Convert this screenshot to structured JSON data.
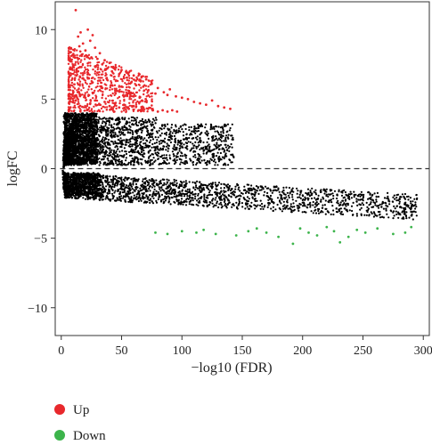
{
  "chart_data": {
    "type": "scatter",
    "title": "",
    "xlabel": "−log10 (FDR)",
    "ylabel": "logFC",
    "xlim": [
      -5,
      305
    ],
    "ylim": [
      -12,
      12
    ],
    "x_ticks": [
      0,
      50,
      100,
      150,
      200,
      250,
      300
    ],
    "x_tick_labels": [
      "0",
      "50",
      "100",
      "150",
      "200",
      "250",
      "300"
    ],
    "y_ticks": [
      -10,
      -5,
      0,
      5,
      10
    ],
    "y_tick_labels": [
      "−10",
      "−5",
      "0",
      "5",
      "10"
    ],
    "reference_line": {
      "y": 0,
      "style": "dashed"
    },
    "grid": false,
    "legend": {
      "placement": "bottom-left",
      "entries": [
        {
          "label": "Up",
          "color": "#e8282c"
        },
        {
          "label": "Down",
          "color": "#3cb44b"
        }
      ]
    },
    "colors": {
      "up": "#e8282c",
      "down": "#3cb44b",
      "not_significant": "#000000"
    },
    "series": [
      {
        "name": "Up",
        "color": "#e8282c",
        "x": [
          12,
          14,
          15,
          16,
          17,
          18,
          20,
          22,
          24,
          25,
          26,
          28,
          30,
          32,
          34,
          36,
          38,
          40,
          42,
          45,
          48,
          50,
          52,
          55,
          58,
          60,
          62,
          65,
          68,
          70,
          72,
          75,
          78,
          80,
          85,
          88,
          90,
          95,
          100,
          105,
          110,
          115,
          120,
          125,
          130,
          135,
          140,
          14,
          18,
          22,
          26,
          30,
          34,
          38,
          42,
          46,
          50,
          55,
          60,
          65,
          70,
          10,
          12,
          16,
          20,
          24,
          28,
          32,
          36,
          40,
          44,
          48,
          52,
          56,
          60,
          64,
          68,
          72,
          76,
          80,
          84,
          88,
          92,
          96
        ],
        "y": [
          11.4,
          9.5,
          8.8,
          9.8,
          8.2,
          9.0,
          8.5,
          10.0,
          9.2,
          8.0,
          9.6,
          8.7,
          7.9,
          8.3,
          7.5,
          7.8,
          7.2,
          7.6,
          7.0,
          7.3,
          6.8,
          7.1,
          6.5,
          6.9,
          6.2,
          6.7,
          6.0,
          6.4,
          5.9,
          6.6,
          5.6,
          6.1,
          5.4,
          5.8,
          5.5,
          5.3,
          5.7,
          5.2,
          5.1,
          5.0,
          4.8,
          4.7,
          4.6,
          4.9,
          4.5,
          4.4,
          4.3,
          7.0,
          6.5,
          6.8,
          6.2,
          6.9,
          5.8,
          6.4,
          6.0,
          5.6,
          5.9,
          5.4,
          5.2,
          5.1,
          5.0,
          5.5,
          4.9,
          5.3,
          5.1,
          4.7,
          4.9,
          4.6,
          4.8,
          4.5,
          4.7,
          4.4,
          4.6,
          4.3,
          4.5,
          4.2,
          4.4,
          4.3,
          4.2,
          4.1,
          4.2,
          4.1,
          4.2,
          4.1
        ]
      },
      {
        "name": "Down",
        "color": "#3cb44b",
        "x": [
          78,
          88,
          100,
          112,
          118,
          128,
          145,
          155,
          162,
          170,
          180,
          192,
          198,
          205,
          212,
          220,
          226,
          231,
          238,
          245,
          252,
          262,
          275,
          285,
          290
        ],
        "y": [
          -4.6,
          -4.7,
          -4.5,
          -4.6,
          -4.4,
          -4.7,
          -4.8,
          -4.5,
          -4.3,
          -4.6,
          -4.9,
          -5.4,
          -4.3,
          -4.6,
          -4.8,
          -4.2,
          -4.5,
          -5.3,
          -4.9,
          -4.4,
          -4.6,
          -4.3,
          -4.7,
          -4.6,
          -4.2
        ]
      }
    ],
    "non_significant_cloud": {
      "color": "#000000",
      "upper_band": {
        "x_range": [
          0,
          170
        ],
        "y_range": [
          0,
          4
        ]
      },
      "lower_band": {
        "x_range": [
          0,
          300
        ],
        "y_range": [
          -4,
          0
        ]
      }
    }
  }
}
